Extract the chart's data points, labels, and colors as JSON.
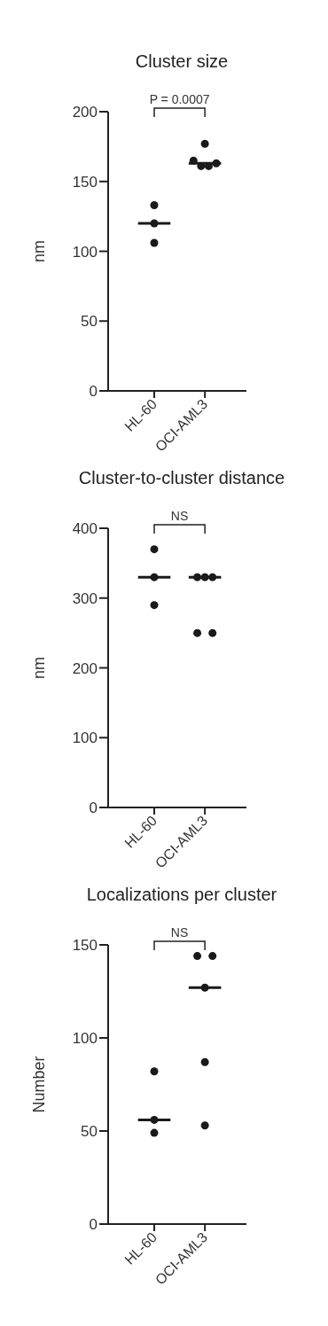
{
  "chart_data": [
    {
      "type": "scatter",
      "title": "Cluster size",
      "ylabel": "nm",
      "categories": [
        "HL-60",
        "OCI-AML3"
      ],
      "ylim": [
        0,
        200
      ],
      "yticks": [
        0,
        50,
        100,
        150,
        200
      ],
      "marker": "circle",
      "annotations": [
        "P = 0.0007"
      ],
      "series": [
        {
          "color": "#1a1a1a",
          "x": [
            "HL-60",
            "HL-60",
            "HL-60",
            "OCI-AML3",
            "OCI-AML3",
            "OCI-AML3",
            "OCI-AML3",
            "OCI-AML3"
          ],
          "values": [
            133,
            120,
            106,
            177,
            165,
            161,
            161,
            163
          ]
        },
        {
          "type": "box",
          "color": "#1a1a1a",
          "boxes": [
            {
              "low": 120,
              "q1": 120,
              "median": 120,
              "q3": 120,
              "high": 120
            },
            {
              "low": 163,
              "q1": 163,
              "median": 163,
              "q3": 163,
              "high": 163
            }
          ]
        }
      ]
    },
    {
      "type": "scatter",
      "title": "Cluster-to-cluster distance",
      "ylabel": "nm",
      "categories": [
        "HL-60",
        "OCI-AML3"
      ],
      "ylim": [
        0,
        400
      ],
      "yticks": [
        0,
        100,
        200,
        300,
        400
      ],
      "marker": "circle",
      "annotations": [
        "NS"
      ],
      "series": [
        {
          "color": "#1a1a1a",
          "x": [
            "HL-60",
            "HL-60",
            "HL-60",
            "OCI-AML3",
            "OCI-AML3",
            "OCI-AML3",
            "OCI-AML3",
            "OCI-AML3"
          ],
          "values": [
            370,
            330,
            290,
            330,
            330,
            330,
            250,
            250
          ]
        },
        {
          "type": "box",
          "color": "#1a1a1a",
          "boxes": [
            {
              "low": 330,
              "q1": 330,
              "median": 330,
              "q3": 330,
              "high": 330
            },
            {
              "low": 330,
              "q1": 330,
              "median": 330,
              "q3": 330,
              "high": 330
            }
          ]
        }
      ]
    },
    {
      "type": "scatter",
      "title": "Localizations per cluster",
      "ylabel": "Number",
      "categories": [
        "HL-60",
        "OCI-AML3"
      ],
      "ylim": [
        0,
        150
      ],
      "yticks": [
        0,
        50,
        100,
        150
      ],
      "marker": "circle",
      "annotations": [
        "NS"
      ],
      "series": [
        {
          "color": "#1a1a1a",
          "x": [
            "HL-60",
            "HL-60",
            "HL-60",
            "OCI-AML3",
            "OCI-AML3",
            "OCI-AML3",
            "OCI-AML3",
            "OCI-AML3"
          ],
          "values": [
            82,
            56,
            49,
            144,
            144,
            127,
            87,
            53
          ]
        },
        {
          "type": "box",
          "color": "#1a1a1a",
          "boxes": [
            {
              "low": 56,
              "q1": 56,
              "median": 56,
              "q3": 56,
              "high": 56
            },
            {
              "low": 127,
              "q1": 127,
              "median": 127,
              "q3": 127,
              "high": 127
            }
          ]
        }
      ]
    }
  ]
}
